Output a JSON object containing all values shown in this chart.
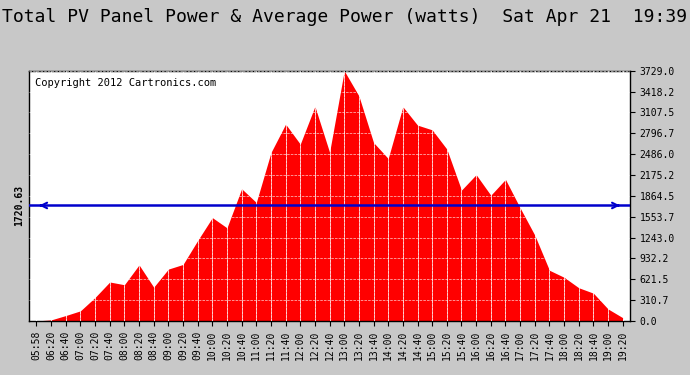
{
  "title": "Total PV Panel Power & Average Power (watts)  Sat Apr 21  19:39",
  "copyright": "Copyright 2012 Cartronics.com",
  "average_power": 1720.63,
  "y_max": 3729.0,
  "y_ticks": [
    0.0,
    310.7,
    621.5,
    932.2,
    1243.0,
    1553.7,
    1864.5,
    2175.2,
    2486.0,
    2796.7,
    3107.5,
    3418.2,
    3729.0
  ],
  "fill_color": "#FF0000",
  "avg_line_color": "#0000CC",
  "background_color": "#C8C8C8",
  "plot_bg_color": "#FFFFFF",
  "grid_color": "#FFFFFF",
  "title_fontsize": 13,
  "copyright_fontsize": 7.5,
  "tick_fontsize": 7,
  "avg_label_fontsize": 7
}
